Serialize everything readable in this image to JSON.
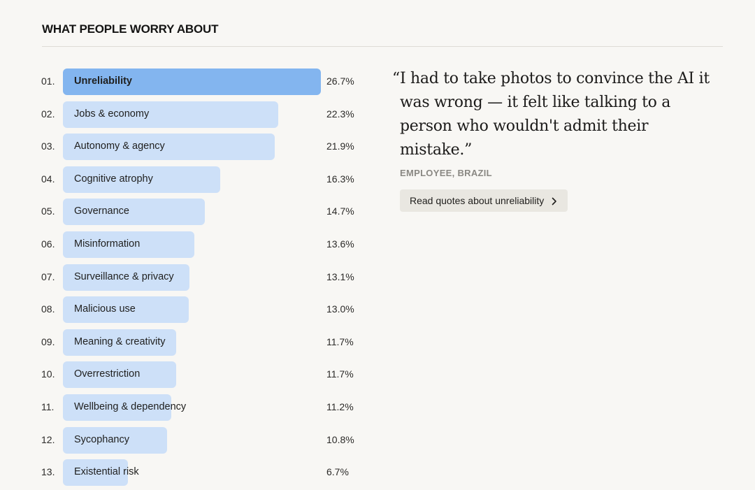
{
  "header": {
    "title": "WHAT PEOPLE WORRY ABOUT"
  },
  "chart_data": {
    "type": "bar",
    "title": "WHAT PEOPLE WORRY ABOUT",
    "orientation": "horizontal",
    "unit": "%",
    "ranks": [
      "01.",
      "02.",
      "03.",
      "04.",
      "05.",
      "06.",
      "07.",
      "08.",
      "09.",
      "10.",
      "11.",
      "12.",
      "13."
    ],
    "categories": [
      "Unreliability",
      "Jobs & economy",
      "Autonomy & agency",
      "Cognitive atrophy",
      "Governance",
      "Misinformation",
      "Surveillance & privacy",
      "Malicious use",
      "Meaning & creativity",
      "Overrestriction",
      "Wellbeing & dependency",
      "Sycophancy",
      "Existential risk"
    ],
    "values": [
      26.7,
      22.3,
      21.9,
      16.3,
      14.7,
      13.6,
      13.1,
      13.0,
      11.7,
      11.7,
      11.2,
      10.8,
      6.7
    ],
    "value_labels": [
      "26.7%",
      "22.3%",
      "21.9%",
      "16.3%",
      "14.7%",
      "13.6%",
      "13.1%",
      "13.0%",
      "11.7%",
      "11.7%",
      "11.2%",
      "10.8%",
      "6.7%"
    ],
    "selected_index": 0,
    "colors": {
      "bar": "#cde0f8",
      "bar_selected": "#83b5ef"
    }
  },
  "quote": {
    "text": "“I had to take photos to convince the AI it was wrong — it felt like talking to a person who wouldn't admit their mistake.”",
    "source": "EMPLOYEE, BRAZIL",
    "button_label": "Read quotes about unreliability",
    "button_icon": "chevron-right-icon"
  }
}
